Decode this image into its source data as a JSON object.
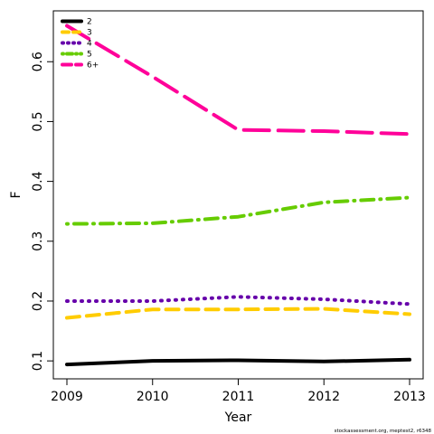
{
  "chart_data": {
    "type": "line",
    "x": [
      2009,
      2010,
      2011,
      2012,
      2013
    ],
    "xlabel": "Year",
    "ylabel": "F",
    "xlim": [
      2009,
      2013
    ],
    "ylim": [
      0.07,
      0.685
    ],
    "x_ticks": [
      "2009",
      "2010",
      "2011",
      "2012",
      "2013"
    ],
    "y_ticks": [
      "0.1",
      "0.2",
      "0.3",
      "0.4",
      "0.5",
      "0.6"
    ],
    "grid": false,
    "legend_position": "top-left",
    "series": [
      {
        "name": "2",
        "values": [
          0.094,
          0.1,
          0.101,
          0.099,
          0.102
        ],
        "color": "#000000",
        "dash": "solid"
      },
      {
        "name": "3",
        "values": [
          0.172,
          0.186,
          0.186,
          0.187,
          0.178
        ],
        "color": "#FFCC00",
        "dash": "dashed"
      },
      {
        "name": "4",
        "values": [
          0.2,
          0.2,
          0.207,
          0.203,
          0.195
        ],
        "color": "#6600AA",
        "dash": "dotted"
      },
      {
        "name": "5",
        "values": [
          0.329,
          0.33,
          0.341,
          0.365,
          0.373
        ],
        "color": "#66CC00",
        "dash": "dotdash"
      },
      {
        "name": "6+",
        "values": [
          0.66,
          0.575,
          0.486,
          0.484,
          0.479
        ],
        "color": "#FF0099",
        "dash": "longdash"
      }
    ]
  },
  "footer": {
    "text": "stockassessment.org, meptest2, r6348"
  }
}
